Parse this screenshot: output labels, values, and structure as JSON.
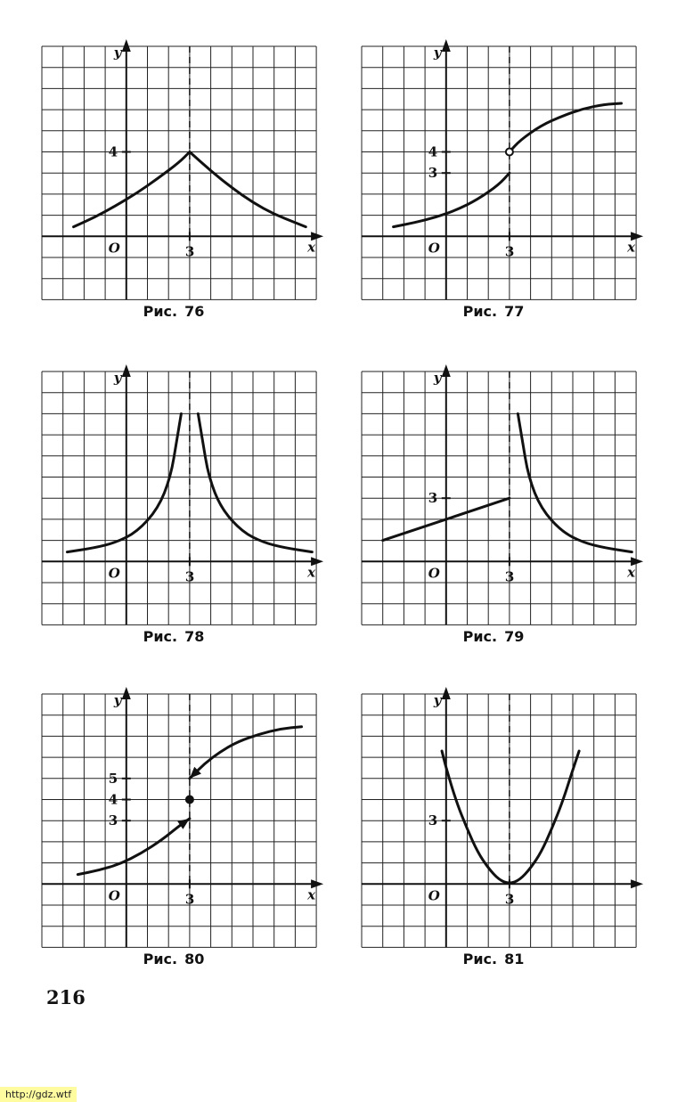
{
  "page_number": "216",
  "watermark": "http://gdz.wtf",
  "chart_data": [
    {
      "id": "p76",
      "type": "line",
      "caption_word": "Рис.",
      "caption_num": "76",
      "x_axis_label": "x",
      "y_axis_label": "y",
      "origin_label": "O",
      "xlim": [
        -4,
        9
      ],
      "ylim": [
        -3,
        9
      ],
      "grid": true,
      "x_ticks": [
        "3"
      ],
      "y_ticks": [
        "4"
      ],
      "dashed_vertical_x": 3,
      "series": [
        {
          "points": [
            [
              -2.5,
              0.45
            ],
            [
              -1.5,
              0.9
            ],
            [
              -0.5,
              1.45
            ],
            [
              0.5,
              2.05
            ],
            [
              1.5,
              2.75
            ],
            [
              2.5,
              3.5
            ],
            [
              3,
              4
            ]
          ]
        },
        {
          "points": [
            [
              3,
              4
            ],
            [
              4,
              3.1
            ],
            [
              5,
              2.3
            ],
            [
              6,
              1.6
            ],
            [
              7,
              1.05
            ],
            [
              8,
              0.65
            ],
            [
              8.5,
              0.45
            ]
          ]
        }
      ],
      "markers": []
    },
    {
      "id": "p77",
      "type": "line",
      "caption_word": "Рис.",
      "caption_num": "77",
      "x_axis_label": "x",
      "y_axis_label": "y",
      "origin_label": "O",
      "xlim": [
        -4,
        9
      ],
      "ylim": [
        -3,
        9
      ],
      "grid": true,
      "x_ticks": [
        "3"
      ],
      "y_ticks": [
        "4",
        "3"
      ],
      "dashed_vertical_x": 3,
      "series": [
        {
          "points": [
            [
              -2.5,
              0.45
            ],
            [
              -1.5,
              0.65
            ],
            [
              -0.5,
              0.9
            ],
            [
              0.5,
              1.25
            ],
            [
              1.5,
              1.75
            ],
            [
              2.5,
              2.45
            ],
            [
              3,
              3
            ]
          ]
        },
        {
          "points": [
            [
              3,
              4
            ],
            [
              3.5,
              4.55
            ],
            [
              4.5,
              5.25
            ],
            [
              5.5,
              5.7
            ],
            [
              6.5,
              6.05
            ],
            [
              7.5,
              6.25
            ],
            [
              8.3,
              6.3
            ]
          ]
        }
      ],
      "markers": [
        {
          "x": 3,
          "y": 4,
          "style": "open"
        }
      ]
    },
    {
      "id": "p78",
      "type": "line",
      "caption_word": "Рис.",
      "caption_num": "78",
      "x_axis_label": "x",
      "y_axis_label": "y",
      "origin_label": "O",
      "xlim": [
        -4,
        9
      ],
      "ylim": [
        -3,
        9
      ],
      "grid": true,
      "x_ticks": [
        "3"
      ],
      "y_ticks": [],
      "dashed_vertical_x": 3,
      "series": [
        {
          "points": [
            [
              -2.8,
              0.45
            ],
            [
              -1.5,
              0.65
            ],
            [
              -0.5,
              0.9
            ],
            [
              0.5,
              1.4
            ],
            [
              1.5,
              2.5
            ],
            [
              2.1,
              4
            ],
            [
              2.4,
              5.8
            ],
            [
              2.6,
              7
            ]
          ]
        },
        {
          "points": [
            [
              3.4,
              7
            ],
            [
              3.6,
              5.8
            ],
            [
              3.9,
              4
            ],
            [
              4.5,
              2.5
            ],
            [
              5.5,
              1.4
            ],
            [
              6.5,
              0.9
            ],
            [
              7.5,
              0.65
            ],
            [
              8.8,
              0.45
            ]
          ]
        }
      ],
      "markers": []
    },
    {
      "id": "p79",
      "type": "line",
      "caption_word": "Рис.",
      "caption_num": "79",
      "x_axis_label": "x",
      "y_axis_label": "y",
      "origin_label": "O",
      "xlim": [
        -4,
        9
      ],
      "ylim": [
        -3,
        9
      ],
      "grid": true,
      "x_ticks": [
        "3"
      ],
      "y_ticks": [
        "3"
      ],
      "dashed_vertical_x": 3,
      "series": [
        {
          "points": [
            [
              -3,
              1
            ],
            [
              3,
              3
            ]
          ]
        },
        {
          "points": [
            [
              3.4,
              7
            ],
            [
              3.6,
              5.8
            ],
            [
              3.9,
              4
            ],
            [
              4.5,
              2.5
            ],
            [
              5.5,
              1.4
            ],
            [
              6.5,
              0.9
            ],
            [
              7.5,
              0.65
            ],
            [
              8.8,
              0.45
            ]
          ]
        }
      ],
      "markers": []
    },
    {
      "id": "p80",
      "type": "line",
      "caption_word": "Рис.",
      "caption_num": "80",
      "x_axis_label": "x",
      "y_axis_label": "y",
      "origin_label": "O",
      "xlim": [
        -4,
        9
      ],
      "ylim": [
        -3,
        9
      ],
      "grid": true,
      "x_ticks": [
        "3"
      ],
      "y_ticks": [
        "5",
        "4",
        "3"
      ],
      "dashed_vertical_x": 3,
      "series": [
        {
          "points": [
            [
              -2.3,
              0.45
            ],
            [
              -1.3,
              0.65
            ],
            [
              -0.3,
              0.95
            ],
            [
              0.7,
              1.45
            ],
            [
              1.7,
              2.1
            ],
            [
              2.5,
              2.75
            ],
            [
              3,
              3.1
            ]
          ],
          "arrow_end": true
        },
        {
          "points": [
            [
              8.3,
              7.45
            ],
            [
              7.3,
              7.35
            ],
            [
              6.3,
              7.1
            ],
            [
              5.3,
              6.75
            ],
            [
              4.5,
              6.3
            ],
            [
              3.7,
              5.7
            ],
            [
              3,
              5
            ]
          ],
          "arrow_end": true
        }
      ],
      "markers": [
        {
          "x": 3,
          "y": 4,
          "style": "filled"
        }
      ]
    },
    {
      "id": "p81",
      "type": "line",
      "caption_word": "Рис.",
      "caption_num": "81",
      "x_axis_label": "",
      "y_axis_label": "y",
      "origin_label": "O",
      "xlim": [
        -4,
        9
      ],
      "ylim": [
        -3,
        9
      ],
      "grid": true,
      "x_ticks": [
        "3"
      ],
      "y_ticks": [
        "3"
      ],
      "dashed_vertical_x": 3,
      "series": [
        {
          "points": [
            [
              -0.2,
              6.3
            ],
            [
              0,
              5.5
            ],
            [
              0.5,
              3.85
            ],
            [
              1,
              2.6
            ],
            [
              1.5,
              1.5
            ],
            [
              2,
              0.75
            ],
            [
              2.5,
              0.2
            ],
            [
              3,
              0
            ],
            [
              3.5,
              0.2
            ],
            [
              4,
              0.75
            ],
            [
              4.5,
              1.5
            ],
            [
              5,
              2.6
            ],
            [
              5.5,
              3.85
            ],
            [
              6,
              5.4
            ],
            [
              6.3,
              6.3
            ]
          ]
        }
      ],
      "markers": []
    }
  ]
}
